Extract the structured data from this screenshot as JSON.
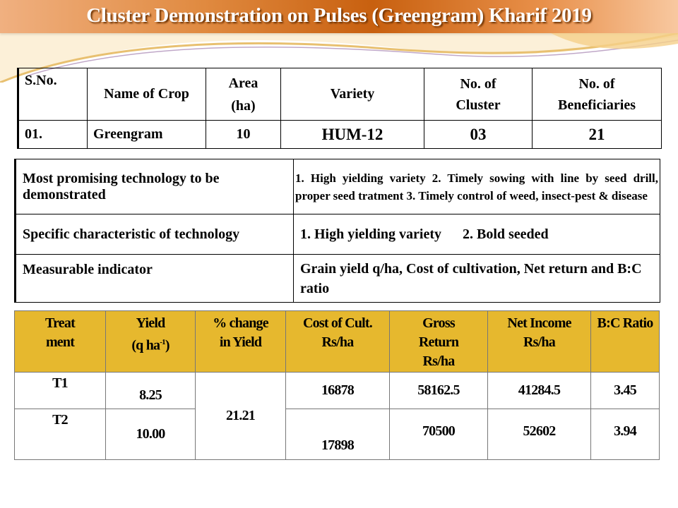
{
  "title": "Cluster Demonstration on Pulses (Greengram) Kharif 2019",
  "crop_table": {
    "headers": [
      "S.No.",
      "Name of Crop",
      "Area",
      "(ha)",
      "Variety",
      "No. of",
      "Cluster",
      "No. of",
      "Beneficiaries"
    ],
    "row": [
      "01.",
      "Greengram",
      "10",
      "HUM-12",
      "03",
      "21"
    ]
  },
  "tech_table": [
    {
      "label": "Most promising technology to be demonstrated",
      "value": "1. High yielding variety   2. Timely sowing with line by seed drill,  proper seed tratment    3. Timely control of weed, insect-pest & disease"
    },
    {
      "label": "Specific characteristic of technology",
      "value": "1. High yielding variety      2. Bold seeded"
    },
    {
      "label": "Measurable indicator",
      "value": "Grain  yield  q/ha, Cost of cultivation, Net return and B:C ratio"
    }
  ],
  "results_table": {
    "headers": {
      "treatment": [
        "Treat",
        "ment"
      ],
      "yield": [
        "Yield",
        "(q ha",
        "-1",
        ")"
      ],
      "change": [
        "% change",
        "in Yield"
      ],
      "cost": [
        "Cost of Cult.",
        "Rs/ha"
      ],
      "gross": [
        "Gross",
        "Return",
        "Rs/ha"
      ],
      "net": [
        "Net Income",
        "Rs/ha"
      ],
      "bc": "B:C Ratio"
    },
    "rows": [
      {
        "treatment": "T1",
        "yield": "8.25",
        "cost": "16878",
        "gross": "58162.5",
        "net": "41284.5",
        "bc": "3.45"
      },
      {
        "treatment": "T2",
        "yield": "10.00",
        "cost": "17898",
        "gross": "70500",
        "net": "52602",
        "bc": "3.94"
      }
    ],
    "change": "21.21"
  },
  "colors": {
    "title_bar": "#c8600f",
    "header_fill": "#e6b82e"
  }
}
